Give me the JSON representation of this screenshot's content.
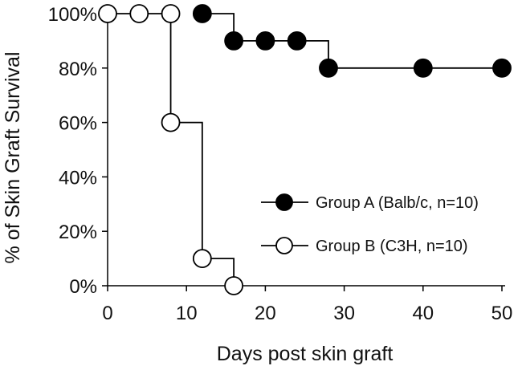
{
  "chart_data": {
    "type": "line",
    "subtype": "kaplan-meier step",
    "title": "",
    "xlabel": "Days post skin graft",
    "ylabel": "% of Skin Graft Survival",
    "xlim": [
      0,
      50
    ],
    "ylim": [
      0,
      100
    ],
    "x_ticks": [
      0,
      10,
      20,
      30,
      40,
      50
    ],
    "y_ticks": [
      0,
      20,
      40,
      60,
      80,
      100
    ],
    "y_tick_labels": [
      "0%",
      "20%",
      "40%",
      "60%",
      "80%",
      "100%"
    ],
    "grid": false,
    "legend_position": "bottom-right",
    "series": [
      {
        "name": "Group A (Balb/c, n=10)",
        "marker": "filled-circle",
        "color": "#000000",
        "x": [
          12,
          16,
          20,
          24,
          28,
          40,
          50
        ],
        "y": [
          100,
          90,
          90,
          90,
          80,
          80,
          80
        ]
      },
      {
        "name": "Group B (C3H, n=10)",
        "marker": "open-circle",
        "color": "#000000",
        "x": [
          0,
          4,
          8,
          8,
          12,
          16
        ],
        "y": [
          100,
          100,
          100,
          60,
          10,
          0
        ]
      }
    ]
  }
}
